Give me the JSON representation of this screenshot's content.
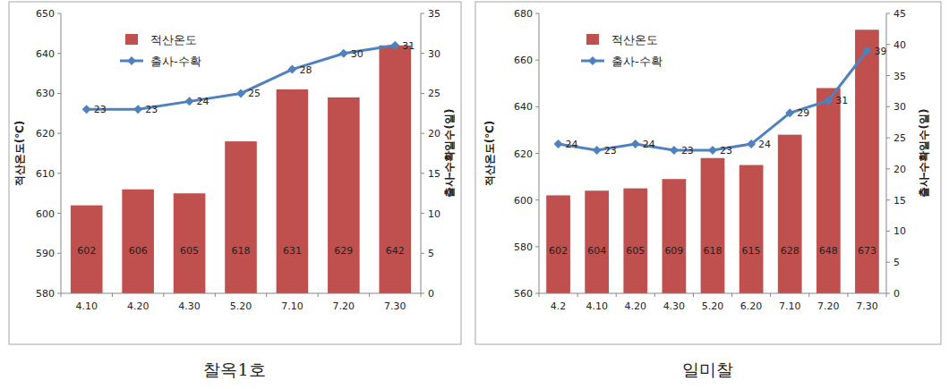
{
  "chart_data": [
    {
      "type": "bar",
      "title": "찰옥1호",
      "categories": [
        "4.10",
        "4.20",
        "4.30",
        "5.20",
        "7.10",
        "7.20",
        "7.30"
      ],
      "series": [
        {
          "name": "적산온도",
          "type": "bar",
          "color": "#c0504d",
          "values": [
            602,
            606,
            605,
            618,
            631,
            629,
            642
          ]
        },
        {
          "name": "출사-수확",
          "type": "line",
          "color": "#4f81bd",
          "marker": "diamond",
          "axis": "y2",
          "values": [
            23,
            23,
            24,
            25,
            28,
            30,
            31
          ]
        }
      ],
      "ylabel": "적산온도(℃)",
      "y2label": "출사-수확일수(일)",
      "ylim": [
        580,
        650
      ],
      "yticks": [
        580,
        590,
        600,
        610,
        620,
        630,
        640,
        650
      ],
      "y2lim": [
        0,
        35
      ],
      "y2ticks": [
        0,
        5,
        10,
        15,
        20,
        25,
        30,
        35
      ],
      "data_labels": true,
      "legend": "top-left",
      "grid": false
    },
    {
      "type": "bar",
      "title": "일미찰",
      "categories": [
        "4.2",
        "4.10",
        "4.20",
        "4.30",
        "5.20",
        "6.20",
        "7.10",
        "7.20",
        "7.30"
      ],
      "series": [
        {
          "name": "적산온도",
          "type": "bar",
          "color": "#c0504d",
          "values": [
            602,
            604,
            605,
            609,
            618,
            615,
            628,
            648,
            673
          ]
        },
        {
          "name": "출사-수확",
          "type": "line",
          "color": "#4f81bd",
          "marker": "diamond",
          "axis": "y2",
          "values": [
            24,
            23,
            24,
            23,
            23,
            24,
            29,
            31,
            39
          ]
        }
      ],
      "ylabel": "적산온도(℃)",
      "y2label": "출사-수확일수(일)",
      "ylim": [
        560,
        680
      ],
      "yticks": [
        560,
        580,
        600,
        620,
        640,
        660,
        680
      ],
      "y2lim": [
        0,
        45
      ],
      "y2ticks": [
        0,
        5,
        10,
        15,
        20,
        25,
        30,
        35,
        40,
        45
      ],
      "data_labels": true,
      "legend": "top-left",
      "grid": false
    }
  ]
}
